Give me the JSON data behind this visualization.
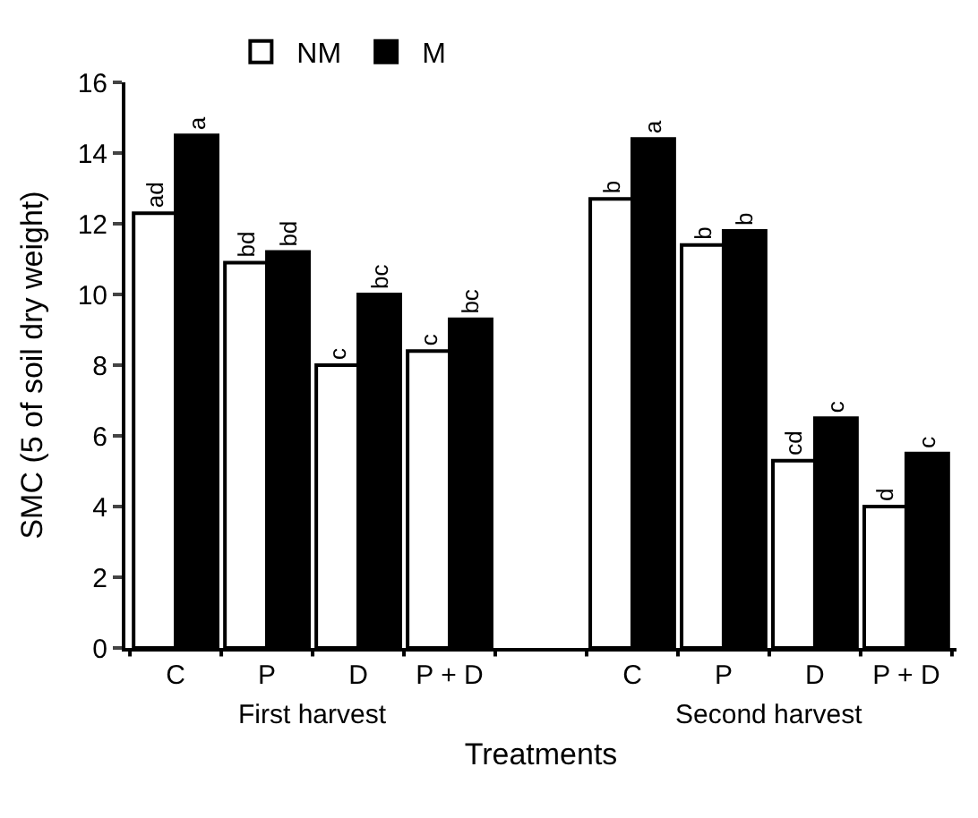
{
  "chart_data": {
    "type": "bar",
    "categories": [
      "C",
      "P",
      "D",
      "P + D",
      null,
      "C",
      "P",
      "D",
      "P + D"
    ],
    "series": [
      {
        "name": "NM",
        "color": "#ffffff",
        "values": [
          12.3,
          10.9,
          8.0,
          8.4,
          null,
          12.7,
          11.4,
          5.3,
          4.0
        ],
        "value_labels": [
          "ad",
          "bd",
          "c",
          "c",
          null,
          "b",
          "b",
          "cd",
          "d"
        ]
      },
      {
        "name": "M",
        "color": "#000000",
        "values": [
          14.5,
          11.2,
          10.0,
          9.3,
          null,
          14.4,
          11.8,
          6.5,
          5.5
        ],
        "value_labels": [
          "a",
          "bd",
          "bc",
          "bc",
          null,
          "a",
          "b",
          "c",
          "c"
        ]
      }
    ],
    "xlabel": "Treatments",
    "ylabel": "SMC (5 of soil dry weight)",
    "annotations": [
      "First harvest",
      "Second harvest"
    ],
    "ylim": [
      0,
      16
    ],
    "yticks": [
      0,
      2,
      4,
      6,
      8,
      10,
      12,
      14,
      16
    ],
    "legend": "top"
  }
}
